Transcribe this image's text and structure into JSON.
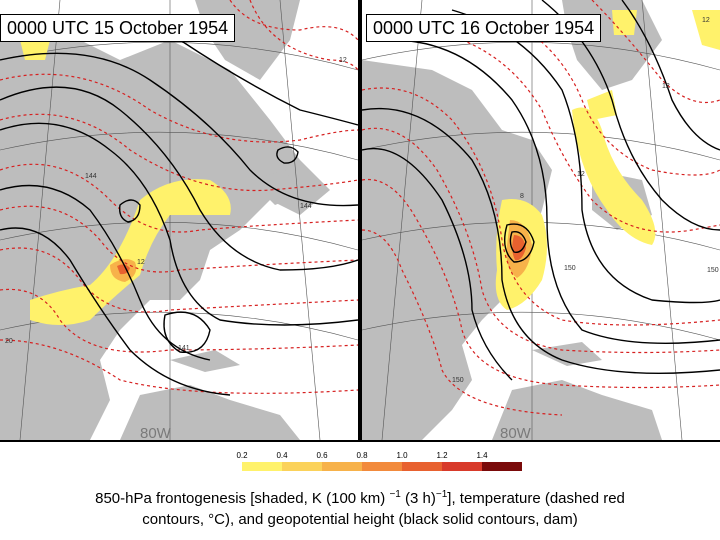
{
  "panels": [
    {
      "title": "0000 UTC 15 October 1954",
      "lon_label": "80W",
      "contour_labels": [
        "12",
        "144",
        "144",
        "12",
        "141",
        "20"
      ]
    },
    {
      "title": "0000 UTC 16 October 1954",
      "lon_label": "80W",
      "contour_labels": [
        "12",
        "12",
        "150",
        "150",
        "150",
        "8",
        "12"
      ]
    }
  ],
  "colorbar": {
    "ticks": [
      "0.2",
      "0.4",
      "0.6",
      "0.8",
      "1.0",
      "1.2",
      "1.4"
    ],
    "colors": [
      "#ffffff",
      "#fff26b",
      "#fbd25a",
      "#f7b24a",
      "#f28a3c",
      "#e8612f",
      "#d83a2a",
      "#7a0a0a"
    ]
  },
  "caption": {
    "part1": "850-hPa frontogenesis [shaded, K (100 km)",
    "sup1": "−1",
    "part2": " (3 h)",
    "sup2": "−1",
    "part3": "], temperature (dashed red",
    "line2": "contours, °C), and geopotential height (black solid contours, dam)"
  }
}
